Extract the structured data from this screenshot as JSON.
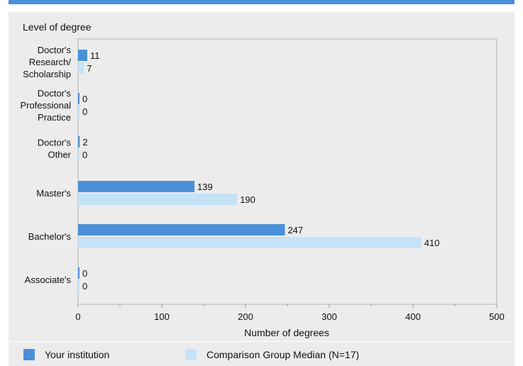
{
  "colors": {
    "your_institution": "#4a90d9",
    "comparison_group": "#c6e2f7",
    "panel_background": "#ececec",
    "accent_bar": "#4a90d9"
  },
  "chart_data": {
    "type": "bar",
    "orientation": "horizontal",
    "title": "",
    "ylabel": "Level of degree",
    "xlabel": "Number of degrees",
    "xlim": [
      0,
      500
    ],
    "xticks": [
      0,
      100,
      200,
      300,
      400,
      500
    ],
    "grid": false,
    "legend_position": "bottom",
    "categories": [
      "Doctor's Research/ Scholarship",
      "Doctor's Professional Practice",
      "Doctor's Other",
      "Master's",
      "Bachelor's",
      "Associate's"
    ],
    "category_label_lines": [
      [
        "Doctor's",
        "Research/",
        "Scholarship"
      ],
      [
        "Doctor's",
        "Professional",
        "Practice"
      ],
      [
        "Doctor's",
        "Other"
      ],
      [
        "Master's"
      ],
      [
        "Bachelor's"
      ],
      [
        "Associate's"
      ]
    ],
    "series": [
      {
        "name": "Your institution",
        "values": [
          11,
          0,
          2,
          139,
          247,
          0
        ]
      },
      {
        "name": "Comparison Group Median (N=17)",
        "values": [
          7,
          0,
          0,
          190,
          410,
          0
        ]
      }
    ]
  }
}
